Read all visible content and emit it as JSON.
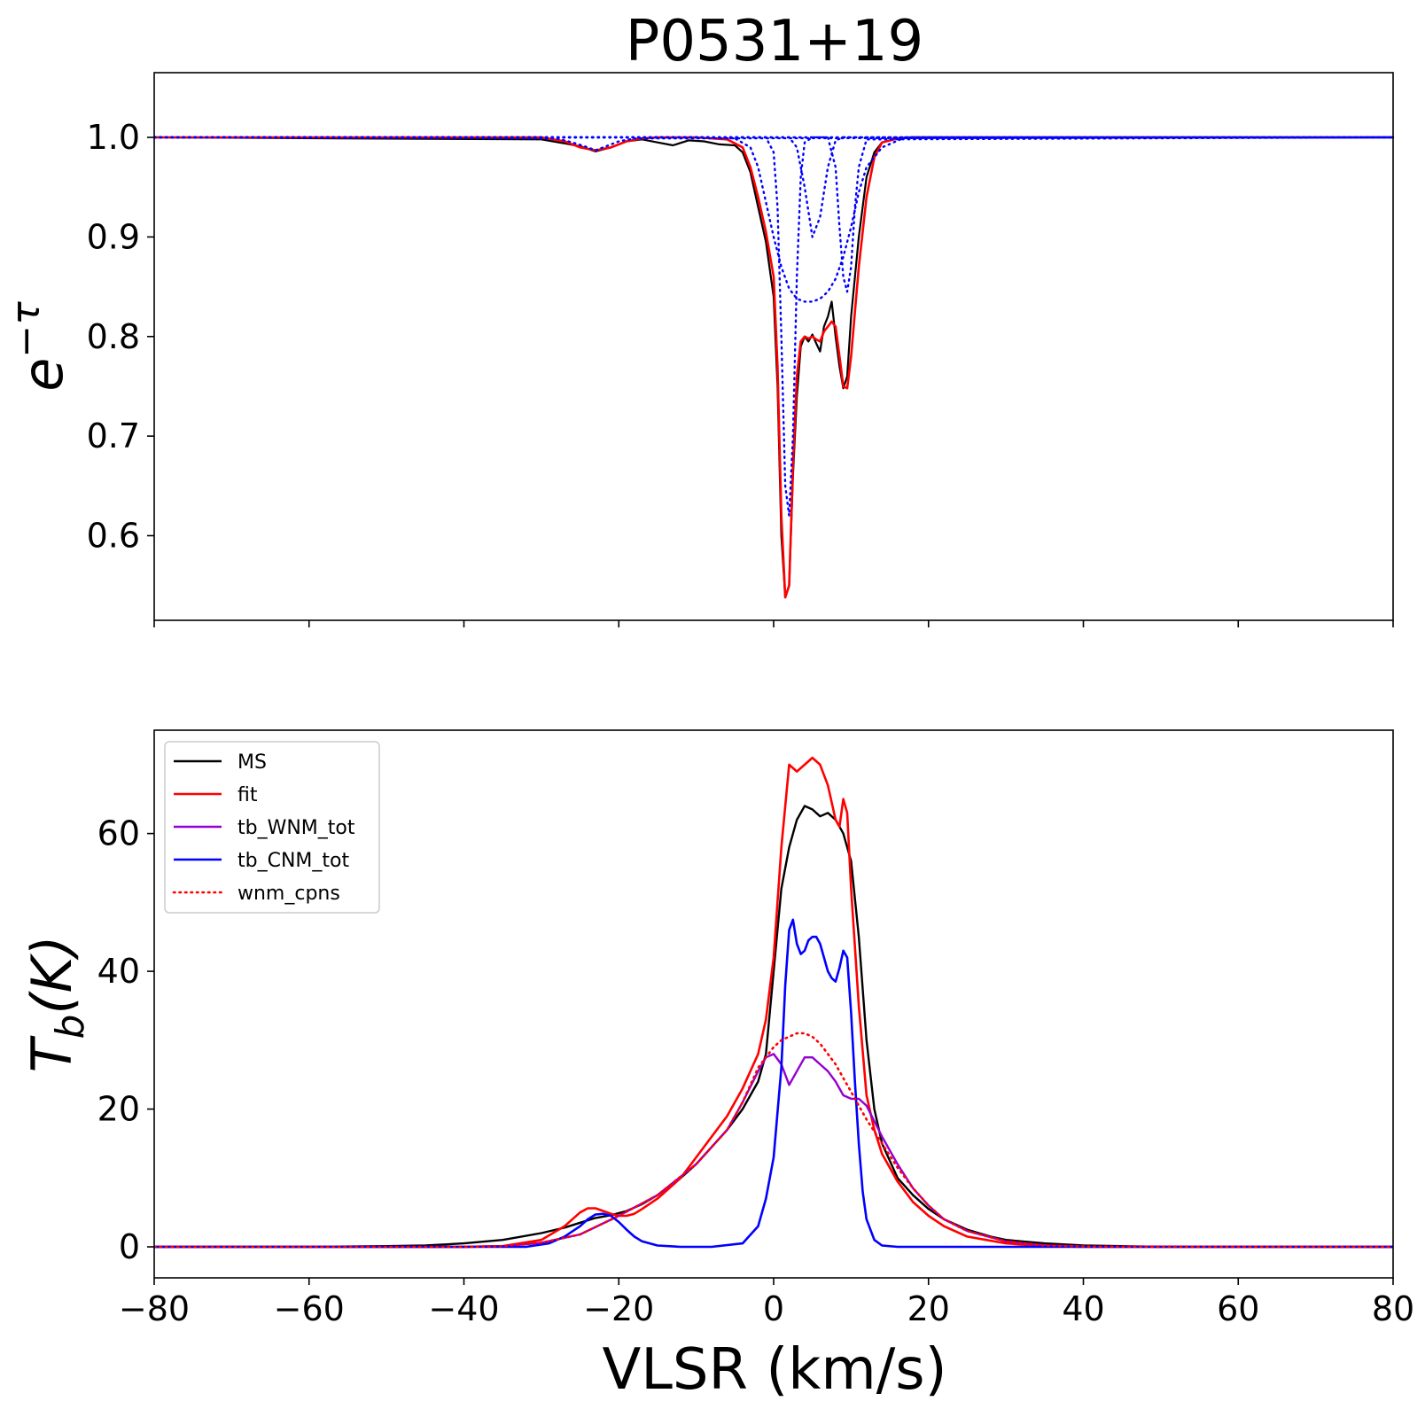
{
  "chart_data": [
    {
      "id": "top",
      "type": "line",
      "title": "P0531+19",
      "ylabel_base": "e",
      "ylabel_sup": "−τ",
      "xlim": [
        -80,
        80
      ],
      "ylim": [
        0.515,
        1.065
      ],
      "yticks": [
        0.6,
        0.7,
        0.8,
        0.9,
        1.0
      ],
      "ytick_labels": [
        "0.6",
        "0.7",
        "0.8",
        "0.9",
        "1.0"
      ],
      "xticks": [
        -80,
        -60,
        -40,
        -20,
        0,
        20,
        40,
        60,
        80
      ],
      "show_xtick_labels": false,
      "grid": false,
      "series": [
        {
          "key": "obs",
          "color": "#000000",
          "style": "solid",
          "width": 2.2,
          "x": [
            -80,
            -30,
            -27,
            -25,
            -23,
            -21,
            -19,
            -17,
            -15,
            -13,
            -11,
            -9,
            -7,
            -5,
            -4,
            -3,
            -2,
            -1,
            0,
            0.5,
            1,
            1.5,
            2,
            2.5,
            3,
            3.5,
            4,
            4.5,
            5,
            5.5,
            6,
            6.5,
            7,
            7.5,
            8,
            8.5,
            9,
            9.5,
            10,
            11,
            12,
            13,
            14,
            16,
            18,
            80
          ],
          "y": [
            1.0,
            0.998,
            0.994,
            0.991,
            0.986,
            0.99,
            0.996,
            0.998,
            0.995,
            0.992,
            0.997,
            0.996,
            0.993,
            0.992,
            0.985,
            0.965,
            0.93,
            0.895,
            0.84,
            0.75,
            0.6,
            0.538,
            0.55,
            0.66,
            0.74,
            0.79,
            0.8,
            0.795,
            0.802,
            0.793,
            0.785,
            0.81,
            0.82,
            0.835,
            0.8,
            0.77,
            0.748,
            0.76,
            0.82,
            0.9,
            0.96,
            0.985,
            0.995,
            0.999,
            1.0,
            1.0
          ]
        },
        {
          "key": "fit",
          "color": "#ff0000",
          "style": "solid",
          "width": 2.6,
          "x": [
            -80,
            -30,
            -27,
            -25,
            -23,
            -21,
            -19,
            -17,
            -15,
            -10,
            -6,
            -4,
            -3,
            -2,
            -1,
            0,
            0.5,
            1,
            1.5,
            2,
            2.5,
            3,
            3.5,
            4,
            4.5,
            5,
            5.5,
            6,
            6.5,
            7,
            7.5,
            8,
            8.5,
            9,
            9.5,
            10,
            11,
            12,
            13,
            14,
            16,
            18,
            80
          ],
          "y": [
            1.0,
            1.0,
            0.996,
            0.99,
            0.987,
            0.99,
            0.996,
            0.999,
            1.0,
            1.0,
            0.998,
            0.99,
            0.97,
            0.94,
            0.905,
            0.86,
            0.77,
            0.62,
            0.538,
            0.55,
            0.67,
            0.76,
            0.795,
            0.8,
            0.798,
            0.8,
            0.797,
            0.795,
            0.805,
            0.81,
            0.815,
            0.81,
            0.78,
            0.75,
            0.748,
            0.78,
            0.87,
            0.94,
            0.98,
            0.995,
            0.999,
            1.0,
            1.0
          ]
        },
        {
          "key": "cpn1",
          "color": "#0000ff",
          "style": "dotted",
          "width": 2.4,
          "x": [
            -80,
            -8,
            -5,
            -3,
            -2,
            -1,
            0,
            1,
            2,
            3,
            4,
            5,
            6,
            7,
            8,
            9,
            10,
            11,
            12,
            14,
            17,
            80
          ],
          "y": [
            1.0,
            1.0,
            0.999,
            0.99,
            0.97,
            0.935,
            0.9,
            0.87,
            0.848,
            0.838,
            0.835,
            0.835,
            0.838,
            0.845,
            0.858,
            0.88,
            0.91,
            0.945,
            0.97,
            0.99,
            1.0,
            1.0
          ]
        },
        {
          "key": "cpn2",
          "color": "#0000ff",
          "style": "dotted",
          "width": 2.4,
          "x": [
            -80,
            -1,
            0,
            0.5,
            1,
            1.5,
            2,
            2.5,
            3,
            3.5,
            4,
            5,
            80
          ],
          "y": [
            1.0,
            1.0,
            0.985,
            0.93,
            0.8,
            0.65,
            0.62,
            0.7,
            0.86,
            0.96,
            0.995,
            1.0,
            1.0
          ]
        },
        {
          "key": "cpn3",
          "color": "#0000ff",
          "style": "dotted",
          "width": 2.4,
          "x": [
            -80,
            2,
            3,
            4,
            5,
            6,
            7,
            8,
            9,
            80
          ],
          "y": [
            1.0,
            1.0,
            0.99,
            0.95,
            0.9,
            0.92,
            0.97,
            0.997,
            1.0,
            1.0
          ]
        },
        {
          "key": "cpn4",
          "color": "#0000ff",
          "style": "dotted",
          "width": 2.4,
          "x": [
            -80,
            7,
            8,
            8.5,
            9,
            9.5,
            10,
            10.5,
            11,
            12,
            80
          ],
          "y": [
            1.0,
            1.0,
            0.97,
            0.91,
            0.86,
            0.845,
            0.87,
            0.93,
            0.97,
            0.998,
            1.0
          ]
        },
        {
          "key": "cpn5",
          "color": "#0000ff",
          "style": "dotted",
          "width": 2.4,
          "x": [
            -80,
            -28,
            -26,
            -24,
            -23,
            -22,
            -20,
            -18,
            80
          ],
          "y": [
            1.0,
            0.999,
            0.995,
            0.99,
            0.987,
            0.99,
            0.996,
            0.999,
            1.0
          ]
        }
      ]
    },
    {
      "id": "bottom",
      "type": "line",
      "xlabel": "VLSR (km/s)",
      "ylabel_base": "T",
      "ylabel_sub": "b",
      "ylabel_rest": "(K)",
      "xlim": [
        -80,
        80
      ],
      "ylim": [
        -4.5,
        75
      ],
      "yticks": [
        0,
        20,
        40,
        60
      ],
      "ytick_labels": [
        "0",
        "20",
        "40",
        "60"
      ],
      "xticks": [
        -80,
        -60,
        -40,
        -20,
        0,
        20,
        40,
        60,
        80
      ],
      "xtick_labels": [
        "−80",
        "−60",
        "−40",
        "−20",
        "0",
        "20",
        "40",
        "60",
        "80"
      ],
      "grid": false,
      "legend": "top-left",
      "series": [
        {
          "key": "ms",
          "name": "MS",
          "color": "#000000",
          "style": "solid",
          "width": 2.4,
          "x": [
            -80,
            -60,
            -50,
            -45,
            -40,
            -35,
            -30,
            -27,
            -25,
            -23,
            -21,
            -19,
            -17,
            -15,
            -12,
            -10,
            -8,
            -6,
            -4,
            -2,
            -1,
            0,
            1,
            2,
            3,
            4,
            5,
            6,
            7,
            8,
            9,
            10,
            11,
            12,
            13,
            14,
            16,
            18,
            20,
            22,
            25,
            28,
            30,
            35,
            40,
            45,
            50,
            60,
            80
          ],
          "y": [
            0,
            0,
            0.1,
            0.2,
            0.5,
            1.0,
            2.0,
            2.8,
            3.5,
            4.2,
            4.6,
            5.2,
            6.2,
            7.5,
            10.0,
            12.0,
            14.5,
            17.0,
            20.0,
            24.0,
            28.0,
            40.0,
            52.0,
            58.0,
            62.0,
            64.0,
            63.5,
            62.5,
            63.0,
            62.0,
            60.0,
            56.0,
            45.0,
            30.0,
            20.0,
            15.0,
            10.0,
            7.5,
            5.5,
            4.0,
            2.5,
            1.5,
            1.0,
            0.5,
            0.2,
            0.1,
            0,
            0,
            0
          ]
        },
        {
          "key": "fit",
          "name": "fit",
          "color": "#ff0000",
          "style": "solid",
          "width": 2.6,
          "x": [
            -80,
            -40,
            -35,
            -30,
            -27,
            -25,
            -24,
            -23,
            -22,
            -21,
            -20,
            -19,
            -18,
            -17,
            -15,
            -12,
            -10,
            -8,
            -6,
            -4,
            -2,
            -1,
            0,
            1,
            2,
            3,
            4,
            5,
            6,
            7,
            8,
            8.5,
            9,
            9.5,
            10,
            11,
            12,
            13,
            14,
            16,
            18,
            20,
            22,
            25,
            30,
            35,
            40,
            80
          ],
          "y": [
            0,
            0,
            0.1,
            1.0,
            3.0,
            5.0,
            5.6,
            5.6,
            5.2,
            4.8,
            4.5,
            4.5,
            4.8,
            5.5,
            7.0,
            10.0,
            13.0,
            16.0,
            19.0,
            23.0,
            28.0,
            33.0,
            42.0,
            58.0,
            70.0,
            69.0,
            70.0,
            71.0,
            70.0,
            67.0,
            62.0,
            61.0,
            65.0,
            63.0,
            52.0,
            35.0,
            22.0,
            17.0,
            13.5,
            9.5,
            6.5,
            4.5,
            3.0,
            1.5,
            0.5,
            0.1,
            0,
            0
          ]
        },
        {
          "key": "wnm",
          "name": "tb_WNM_tot",
          "color": "#9400d3",
          "style": "solid",
          "width": 2.4,
          "x": [
            -80,
            -40,
            -35,
            -30,
            -25,
            -20,
            -15,
            -10,
            -6,
            -4,
            -2,
            -1,
            0,
            1,
            2,
            3,
            4,
            5,
            6,
            7,
            8,
            9,
            10,
            11,
            12,
            14,
            16,
            18,
            20,
            22,
            25,
            30,
            35,
            40,
            80
          ],
          "y": [
            0,
            0,
            0.1,
            0.6,
            1.8,
            4.5,
            7.5,
            12.0,
            17.0,
            21.0,
            25.5,
            27.5,
            28.0,
            26.5,
            23.5,
            25.5,
            27.5,
            27.5,
            26.5,
            25.5,
            24.0,
            22.0,
            21.5,
            21.5,
            20.5,
            16.0,
            12.0,
            8.5,
            6.0,
            4.0,
            2.3,
            0.8,
            0.2,
            0.05,
            0
          ]
        },
        {
          "key": "cnm",
          "name": "tb_CNM_tot",
          "color": "#0000ff",
          "style": "solid",
          "width": 2.6,
          "x": [
            -80,
            -32,
            -29,
            -27,
            -25,
            -24,
            -23,
            -22,
            -21,
            -20,
            -19,
            -18,
            -17,
            -15,
            -12,
            -8,
            -4,
            -2,
            -1,
            0,
            1,
            1.5,
            2,
            2.5,
            3,
            3.5,
            4,
            4.5,
            5,
            5.5,
            6,
            6.5,
            7,
            7.5,
            8,
            8.5,
            9,
            9.5,
            10,
            10.5,
            11,
            11.5,
            12,
            13,
            14,
            16,
            80
          ],
          "y": [
            0,
            0,
            0.5,
            1.5,
            3.0,
            4.0,
            4.7,
            4.8,
            4.5,
            3.6,
            2.5,
            1.5,
            0.8,
            0.2,
            0,
            0,
            0.5,
            3.0,
            7.0,
            13.0,
            26.0,
            38.0,
            46.0,
            47.5,
            44.0,
            42.5,
            43.0,
            44.5,
            45.0,
            45.0,
            44.0,
            42.0,
            40.0,
            39.0,
            38.5,
            40.5,
            43.0,
            42.0,
            34.0,
            24.0,
            15.0,
            8.0,
            4.0,
            1.0,
            0.2,
            0,
            0
          ]
        },
        {
          "key": "wnmc",
          "name": "wnm_cpns",
          "color": "#ff0000",
          "style": "dotted",
          "width": 2.6,
          "x": [
            -80,
            -40,
            -35,
            -30,
            -25,
            -20,
            -15,
            -10,
            -6,
            -4,
            -2,
            0,
            1,
            2,
            3,
            4,
            5,
            6,
            7,
            8,
            9,
            10,
            11,
            12,
            14,
            16,
            18,
            20,
            22,
            25,
            30,
            35,
            40,
            80
          ],
          "y": [
            0,
            0,
            0.1,
            0.6,
            1.8,
            4.5,
            7.5,
            12.0,
            17.0,
            21.0,
            26.0,
            29.0,
            30.0,
            30.5,
            31.0,
            31.0,
            30.5,
            29.5,
            28.0,
            26.5,
            24.5,
            22.5,
            20.5,
            18.5,
            15.0,
            11.5,
            8.5,
            6.0,
            4.0,
            2.3,
            0.8,
            0.2,
            0.05,
            0
          ]
        }
      ]
    }
  ]
}
